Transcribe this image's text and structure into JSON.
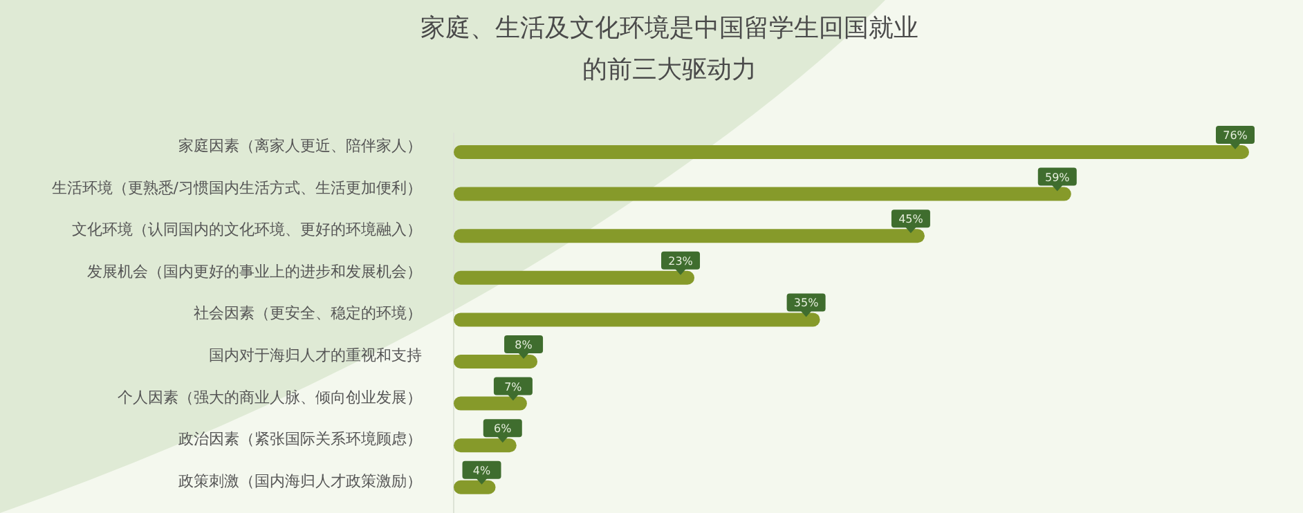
{
  "chart_data": {
    "type": "bar",
    "orientation": "horizontal",
    "title": "家庭、生活及文化环境是中国留学生回国就业的前三大驱动力",
    "categories": [
      "家庭因素（离家人更近、陪伴家人）",
      "生活环境（更熟悉/习惯国内生活方式、生活更加便利）",
      "文化环境（认同国内的文化环境、更好的环境融入）",
      "发展机会（国内更好的事业上的进步和发展机会）",
      "社会因素（更安全、稳定的环境）",
      "国内对于海归人才的重视和支持",
      "个人因素（强大的商业人脉、倾向创业发展）",
      "政治因素（紧张国际关系环境顾虑）",
      "政策刺激（国内海归人才政策激励）"
    ],
    "values": [
      76,
      59,
      45,
      23,
      35,
      8,
      7,
      6,
      4
    ],
    "value_labels": [
      "76%",
      "59%",
      "45%",
      "23%",
      "35%",
      "8%",
      "7%",
      "6%",
      "4%"
    ],
    "color": "#869a2a"
  }
}
